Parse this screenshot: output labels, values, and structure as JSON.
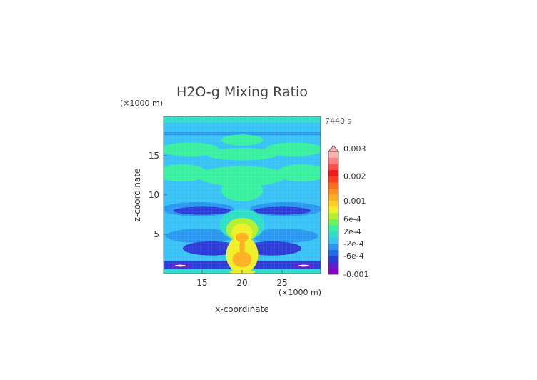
{
  "chart_data": {
    "type": "heatmap",
    "title": "H2O-g Mixing Ratio",
    "time_label": "7440 s",
    "xlabel": "x-coordinate",
    "ylabel": "z-coordinate",
    "x_unit": "(×1000 m)",
    "y_unit": "(×1000 m)",
    "xlim": [
      10.2,
      29.8
    ],
    "ylim": [
      0,
      20
    ],
    "x_ticks": [
      15,
      20,
      25
    ],
    "y_ticks": [
      5,
      10,
      15
    ],
    "colorbar": {
      "levels": [
        "-0.001",
        "-6e-4",
        "-2e-4",
        "2e-4",
        "6e-4",
        "0.001",
        "0.002",
        "0.003"
      ],
      "colors": [
        "#8a00c8",
        "#5a1fd0",
        "#2c3cd8",
        "#1f6ae6",
        "#2a98f0",
        "#38c2f5",
        "#2ee0c8",
        "#38f0a0",
        "#6cf25a",
        "#b2f030",
        "#eef028",
        "#ffd020",
        "#ffb020",
        "#ff9020",
        "#ff6a20",
        "#ff3c1c",
        "#f01a1a",
        "#ff5050",
        "#ff8080",
        "#ffb0b0"
      ]
    },
    "field": {
      "background": "#38c2f5",
      "regions": [
        {
          "shape": "band",
          "z": [
            19.2,
            20
          ],
          "color": "#2ee0c8"
        },
        {
          "shape": "band",
          "z": [
            17.6,
            18.0
          ],
          "color": "#2a98f0"
        },
        {
          "shape": "band",
          "z": [
            0.6,
            1.6
          ],
          "color": "#2c3cd8"
        },
        {
          "shape": "band",
          "z": [
            0,
            0.5
          ],
          "color": "#2ee0c8"
        },
        {
          "shape": "ellipse",
          "cx": 20,
          "cz": 17.0,
          "rx": 2.6,
          "rz": 0.7,
          "color": "#38f0a0"
        },
        {
          "shape": "ellipse",
          "cx": 13.5,
          "cz": 15.8,
          "rx": 3.6,
          "rz": 0.9,
          "color": "#38f0a0"
        },
        {
          "shape": "ellipse",
          "cx": 26.5,
          "cz": 15.8,
          "rx": 3.6,
          "rz": 0.9,
          "color": "#38f0a0"
        },
        {
          "shape": "ellipse",
          "cx": 20,
          "cz": 15.2,
          "rx": 4.5,
          "rz": 0.8,
          "color": "#38f0a0"
        },
        {
          "shape": "ellipse",
          "cx": 12.5,
          "cz": 12.8,
          "rx": 3.2,
          "rz": 1.1,
          "color": "#38f0a0"
        },
        {
          "shape": "ellipse",
          "cx": 27.5,
          "cz": 12.8,
          "rx": 3.2,
          "rz": 1.1,
          "color": "#38f0a0"
        },
        {
          "shape": "ellipse",
          "cx": 20,
          "cz": 12.4,
          "rx": 5.5,
          "rz": 1.3,
          "color": "#38f0a0"
        },
        {
          "shape": "ellipse",
          "cx": 20,
          "cz": 10.6,
          "rx": 2.6,
          "rz": 1.4,
          "color": "#38f0a0"
        },
        {
          "shape": "ellipse",
          "cx": 14.5,
          "cz": 8.2,
          "rx": 4.5,
          "rz": 0.9,
          "color": "#2a98f0"
        },
        {
          "shape": "ellipse",
          "cx": 25.5,
          "cz": 8.2,
          "rx": 4.5,
          "rz": 0.9,
          "color": "#2a98f0"
        },
        {
          "shape": "ellipse",
          "cx": 15,
          "cz": 8.0,
          "rx": 3.6,
          "rz": 0.5,
          "color": "#2c3cd8"
        },
        {
          "shape": "ellipse",
          "cx": 25,
          "cz": 8.0,
          "rx": 3.6,
          "rz": 0.5,
          "color": "#2c3cd8"
        },
        {
          "shape": "ellipse",
          "cx": 14.8,
          "cz": 4.8,
          "rx": 4.3,
          "rz": 0.9,
          "color": "#2a98f0"
        },
        {
          "shape": "ellipse",
          "cx": 25.2,
          "cz": 4.8,
          "rx": 4.3,
          "rz": 0.9,
          "color": "#2a98f0"
        },
        {
          "shape": "ellipse",
          "cx": 20,
          "cz": 6.2,
          "rx": 2.8,
          "rz": 2.0,
          "color": "#2ee0c8"
        },
        {
          "shape": "ellipse",
          "cx": 20,
          "cz": 5.6,
          "rx": 2.0,
          "rz": 1.5,
          "color": "#b2f030"
        },
        {
          "shape": "ellipse",
          "cx": 20,
          "cz": 5.2,
          "rx": 1.3,
          "rz": 1.2,
          "color": "#eef028"
        },
        {
          "shape": "ellipse",
          "cx": 16.2,
          "cz": 3.2,
          "rx": 3.6,
          "rz": 0.9,
          "color": "#2c3cd8"
        },
        {
          "shape": "ellipse",
          "cx": 23.8,
          "cz": 3.2,
          "rx": 3.6,
          "rz": 0.9,
          "color": "#2c3cd8"
        },
        {
          "shape": "ellipse",
          "cx": 20,
          "cz": 2.4,
          "rx": 2.0,
          "rz": 2.4,
          "color": "#eef028"
        },
        {
          "shape": "ellipse",
          "cx": 20,
          "cz": 4.6,
          "rx": 0.8,
          "rz": 0.6,
          "color": "#ffb020"
        },
        {
          "shape": "ellipse",
          "cx": 20,
          "cz": 3.4,
          "rx": 0.35,
          "rz": 0.9,
          "color": "#ffb020"
        },
        {
          "shape": "ellipse",
          "cx": 20,
          "cz": 1.8,
          "rx": 1.2,
          "rz": 1.0,
          "color": "#ffb020"
        },
        {
          "shape": "ellipse",
          "cx": 12.3,
          "cz": 1.0,
          "rx": 1.4,
          "rz": 0.35,
          "color": "#5a1fd0"
        },
        {
          "shape": "ellipse",
          "cx": 27.7,
          "cz": 1.0,
          "rx": 1.4,
          "rz": 0.35,
          "color": "#5a1fd0"
        },
        {
          "shape": "ellipse",
          "cx": 12.3,
          "cz": 1.0,
          "rx": 0.7,
          "rz": 0.12,
          "color": "#ffffff"
        },
        {
          "shape": "ellipse",
          "cx": 27.7,
          "cz": 1.0,
          "rx": 0.7,
          "rz": 0.12,
          "color": "#ffffff"
        },
        {
          "shape": "ellipse",
          "cx": 20,
          "cz": 0.2,
          "rx": 1.6,
          "rz": 0.3,
          "color": "#eef028"
        }
      ]
    }
  }
}
